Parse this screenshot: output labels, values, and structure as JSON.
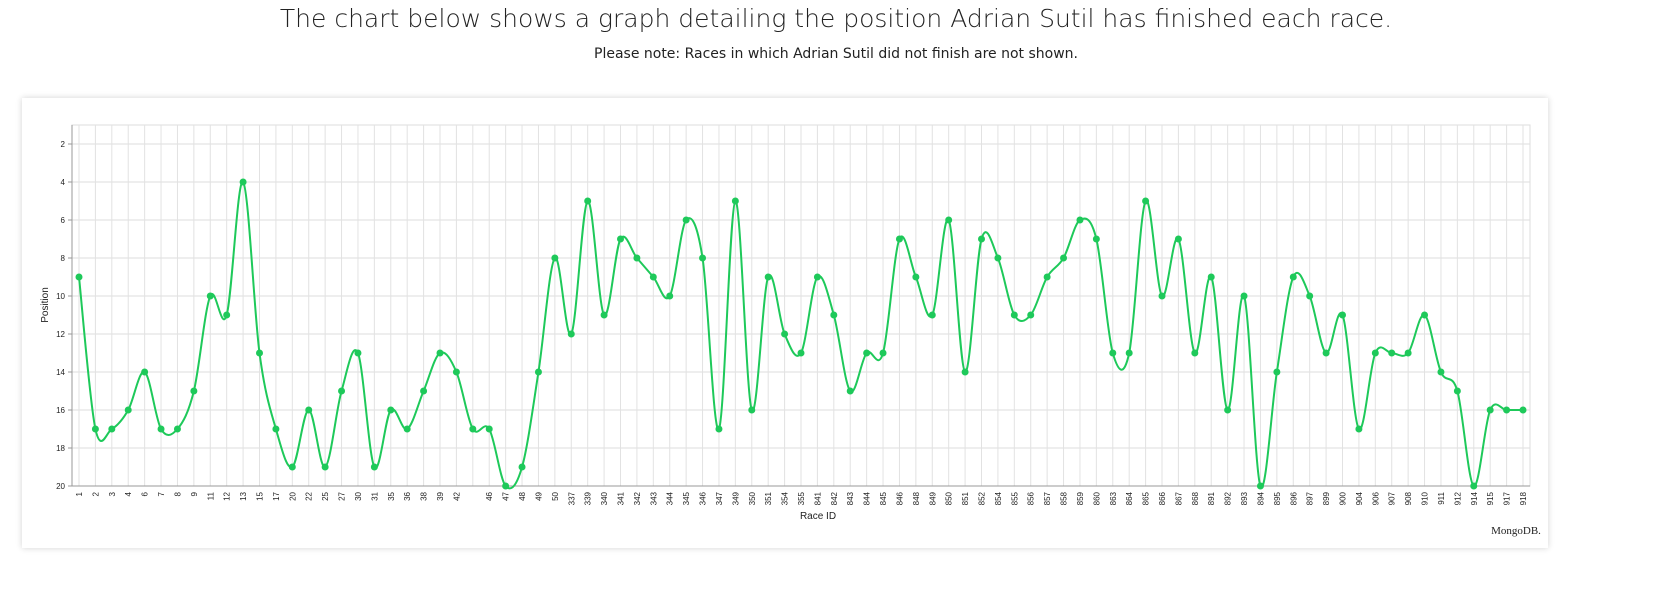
{
  "chart_data": {
    "type": "line",
    "title": "The chart below shows a graph detailing the position Adrian Sutil has finished each race.",
    "subtitle": "Please note: Races in which Adrian Sutil did not finish are not shown.",
    "x_label": "Race ID",
    "y_label": "Position",
    "watermark": "MongoDB.",
    "categories": [
      "1",
      "2",
      "3",
      "4",
      "6",
      "7",
      "8",
      "9",
      "11",
      "12",
      "13",
      "15",
      "17",
      "20",
      "22",
      "25",
      "27",
      "30",
      "31",
      "35",
      "36",
      "38",
      "39",
      "42",
      null,
      "46",
      "47",
      "48",
      "49",
      "50",
      "337",
      "339",
      "340",
      "341",
      "342",
      "343",
      "344",
      "345",
      "346",
      "347",
      "349",
      "350",
      "351",
      "354",
      "355",
      "841",
      "842",
      "843",
      "844",
      "845",
      "846",
      "848",
      "849",
      "850",
      "851",
      "852",
      "854",
      "855",
      "856",
      "857",
      "858",
      "859",
      "860",
      "863",
      "864",
      "865",
      "866",
      "867",
      "868",
      "891",
      "892",
      "893",
      "894",
      "895",
      "896",
      "897",
      "899",
      "900",
      "904",
      "906",
      "907",
      "908",
      "910",
      "911",
      "912",
      "914",
      "915",
      "917",
      "918"
    ],
    "series": [
      {
        "name": "Position",
        "color": "#1ec95a",
        "values": [
          9,
          17,
          17,
          16,
          14,
          17,
          17,
          15,
          10,
          11,
          4,
          13,
          17,
          19,
          16,
          19,
          15,
          13,
          19,
          16,
          17,
          15,
          13,
          14,
          17,
          17,
          20,
          19,
          14,
          8,
          12,
          5,
          11,
          7,
          8,
          9,
          10,
          6,
          8,
          17,
          5,
          16,
          9,
          12,
          13,
          9,
          11,
          15,
          13,
          13,
          7,
          9,
          11,
          6,
          14,
          7,
          8,
          11,
          11,
          9,
          8,
          6,
          7,
          13,
          13,
          5,
          10,
          7,
          13,
          9,
          16,
          10,
          20,
          14,
          9,
          10,
          13,
          11,
          17,
          13,
          13,
          13,
          11,
          14,
          15,
          20,
          16,
          16,
          16
        ]
      }
    ],
    "ylim": [
      20,
      1
    ],
    "yticks": [
      2,
      4,
      6,
      8,
      10,
      12,
      14,
      16,
      18,
      20
    ],
    "grid": true
  }
}
